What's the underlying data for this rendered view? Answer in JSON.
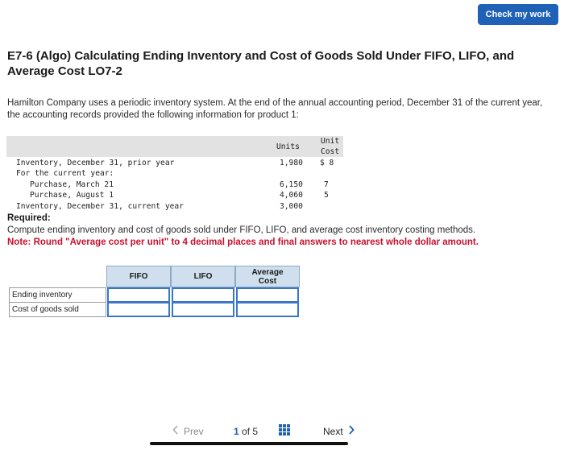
{
  "header": {
    "check_button": "Check my work"
  },
  "title": "E7-6 (Algo) Calculating Ending Inventory and Cost of Goods Sold Under FIFO, LIFO, and Average Cost LO7-2",
  "intro": "Hamilton Company uses a periodic inventory system. At the end of the annual accounting period, December 31 of the current year, the accounting records provided the following information for product 1:",
  "inventory": {
    "col_units": "Units",
    "col_unit_cost_1": "Unit",
    "col_unit_cost_2": "Cost",
    "rows": [
      {
        "label": "Inventory, December 31, prior year",
        "units": "1,980",
        "cost": "$ 8"
      },
      {
        "label": "For the current year:",
        "units": "",
        "cost": ""
      },
      {
        "label": "Purchase, March 21",
        "units": "6,150",
        "cost": "7"
      },
      {
        "label": "Purchase, August 1",
        "units": "4,060",
        "cost": "5"
      },
      {
        "label": "Inventory, December 31, current year",
        "units": "3,000",
        "cost": ""
      }
    ]
  },
  "required_label": "Required:",
  "instruction": "Compute ending inventory and cost of goods sold under FIFO, LIFO, and average cost inventory costing methods.",
  "note": "Note: Round \"Average cost per unit\" to 4 decimal places and final answers to nearest whole dollar amount.",
  "answer_table": {
    "headers": [
      "FIFO",
      "LIFO",
      "Average Cost"
    ],
    "rows": [
      "Ending inventory",
      "Cost of goods sold"
    ]
  },
  "nav": {
    "prev": "Prev",
    "page_current": "1",
    "page_of": "of 5",
    "next": "Next"
  },
  "colors": {
    "accent": "#1f61b6",
    "note_red": "#c8102e",
    "header_blue": "#cfdfee"
  }
}
